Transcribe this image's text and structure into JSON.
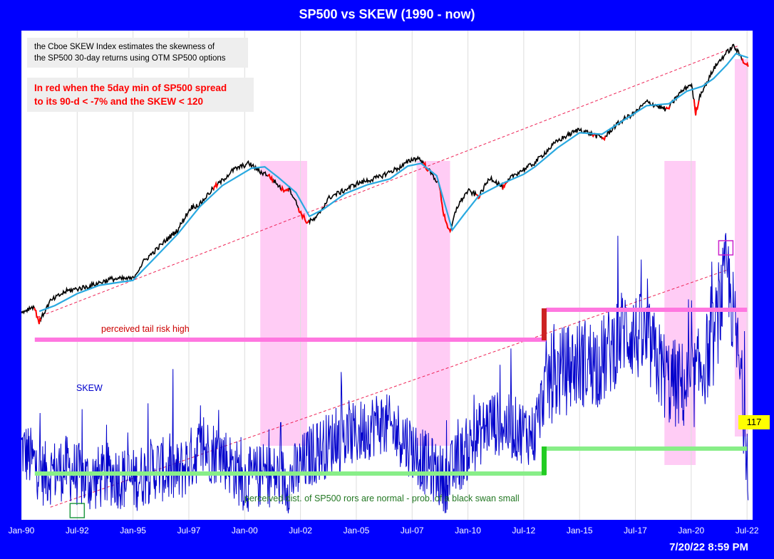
{
  "chart_data": {
    "type": "line",
    "title": "SP500 vs SKEW (1990 - now)",
    "xlabel": "",
    "ylabel": "",
    "x_range": [
      "1990-01",
      "2022-07"
    ],
    "x_ticks": [
      "Jan-90",
      "Jul-92",
      "Jan-95",
      "Jul-97",
      "Jan-00",
      "Jul-02",
      "Jan-05",
      "Jul-07",
      "Jan-10",
      "Jul-12",
      "Jan-15",
      "Jul-17",
      "Jan-20",
      "Jul-22"
    ],
    "grid": "vertical",
    "legend": "none",
    "series": [
      {
        "name": "",
        "key": "sp500",
        "color": "#000000",
        "x": [
          1990.0,
          1990.55,
          1990.8,
          1991.3,
          1992.0,
          1993.0,
          1994.0,
          1995.0,
          1995.5,
          1996.0,
          1997.0,
          1997.6,
          1998.0,
          1998.6,
          1999.0,
          1999.5,
          2000.2,
          2000.7,
          2001.0,
          2001.7,
          2002.0,
          2002.5,
          2002.8,
          2003.2,
          2003.8,
          2004.5,
          2005.0,
          2006.0,
          2007.0,
          2007.5,
          2007.8,
          2008.3,
          2008.7,
          2008.9,
          2009.2,
          2009.5,
          2010.0,
          2010.5,
          2011.0,
          2011.6,
          2012.0,
          2012.7,
          2013.0,
          2013.5,
          2014.0,
          2014.5,
          2015.0,
          2015.6,
          2016.1,
          2016.5,
          2017.0,
          2017.5,
          2018.0,
          2018.9,
          2019.0,
          2019.5,
          2020.0,
          2020.2,
          2020.4,
          2020.8,
          2021.0,
          2021.5,
          2021.9,
          2022.1,
          2022.3,
          2022.55
        ],
        "y": [
          336,
          358,
          305,
          376,
          415,
          435,
          468,
          470,
          560,
          620,
          760,
          950,
          980,
          1150,
          1240,
          1380,
          1470,
          1350,
          1320,
          1130,
          1150,
          900,
          820,
          850,
          1050,
          1130,
          1200,
          1280,
          1420,
          1530,
          1550,
          1350,
          1200,
          900,
          730,
          950,
          1120,
          1060,
          1280,
          1150,
          1300,
          1420,
          1480,
          1650,
          1830,
          1950,
          2060,
          1950,
          1880,
          2090,
          2280,
          2430,
          2700,
          2500,
          2550,
          2950,
          3230,
          2400,
          2900,
          3400,
          3750,
          4300,
          4700,
          4400,
          4100,
          3850
        ]
      },
      {
        "name": "",
        "key": "sp500_ma",
        "color": "#29a9e0",
        "x": [
          1990.8,
          1991.5,
          1992.5,
          1993.5,
          1994.5,
          1995.0,
          1996.0,
          1997.0,
          1998.0,
          1999.0,
          2000.3,
          2000.9,
          2001.5,
          2002.3,
          2002.9,
          2003.5,
          2004.5,
          2005.5,
          2006.5,
          2007.3,
          2007.9,
          2008.6,
          2009.3,
          2009.8,
          2010.5,
          2011.5,
          2012.5,
          2013.0,
          2014.0,
          2015.0,
          2016.0,
          2017.0,
          2018.0,
          2019.0,
          2019.8,
          2020.5,
          2021.0,
          2021.6,
          2022.0,
          2022.55
        ],
        "y": [
          340,
          360,
          405,
          440,
          455,
          462,
          580,
          730,
          960,
          1180,
          1400,
          1420,
          1280,
          1100,
          870,
          930,
          1090,
          1190,
          1260,
          1430,
          1470,
          1300,
          760,
          880,
          1070,
          1200,
          1320,
          1420,
          1710,
          1990,
          1960,
          2260,
          2600,
          2650,
          3000,
          3150,
          3400,
          3900,
          4350,
          4180
        ]
      },
      {
        "name": "SKEW",
        "key": "skew",
        "color": "#0000cc",
        "x": [
          1990.0,
          1991.0,
          1992.0,
          1993.0,
          1994.0,
          1995.0,
          1996.0,
          1997.0,
          1998.0,
          1999.0,
          2000.0,
          2001.0,
          2002.0,
          2003.0,
          2004.0,
          2005.0,
          2006.0,
          2007.0,
          2008.0,
          2009.0,
          2010.0,
          2011.0,
          2012.0,
          2013.0,
          2013.5,
          2014.0,
          2015.0,
          2016.0,
          2017.0,
          2018.0,
          2019.0,
          2020.0,
          2021.0,
          2021.6,
          2022.0,
          2022.55
        ],
        "y": [
          118,
          114,
          115,
          113,
          114,
          113,
          115,
          114,
          118,
          117,
          113,
          114,
          113,
          117,
          119,
          120,
          122,
          120,
          116,
          113,
          118,
          122,
          121,
          120,
          128,
          129,
          131,
          131,
          136,
          134,
          128,
          127,
          134,
          145,
          135,
          117
        ]
      }
    ],
    "highlight_periods": [
      [
        2000.7,
        2002.8
      ],
      [
        2007.7,
        2009.2
      ],
      [
        2018.8,
        2020.2
      ],
      [
        2021.95,
        2022.55
      ]
    ],
    "text": {
      "note_definition_1": "the Cboe SKEW Index estimates the skewness of",
      "note_definition_2": "the SP500 30-day returns using OTM SP500 options",
      "note_red_1": "In red when the 5day min of SP500 spread",
      "note_red_2": "to its 90-d < -7% and the SKEW < 120",
      "label_tail_risk": "perceived tail risk high",
      "label_skew": "SKEW",
      "label_normal": "perceived dist. of SP500 rors are normal - prob. of a black swan small",
      "last_value": "117",
      "timestamp": "7/20/22 8:59 PM"
    },
    "colors": {
      "background": "#0000ff",
      "plot_bg": "#ffffff",
      "sp500": "#000000",
      "sp500_ma": "#29a9e0",
      "sp500_red": "#ff0000",
      "skew": "#0000cc",
      "shade": "#ffccf5",
      "upper_band": "#ff77e0",
      "lower_band": "#88ee88",
      "trend": "#ee2255"
    }
  }
}
